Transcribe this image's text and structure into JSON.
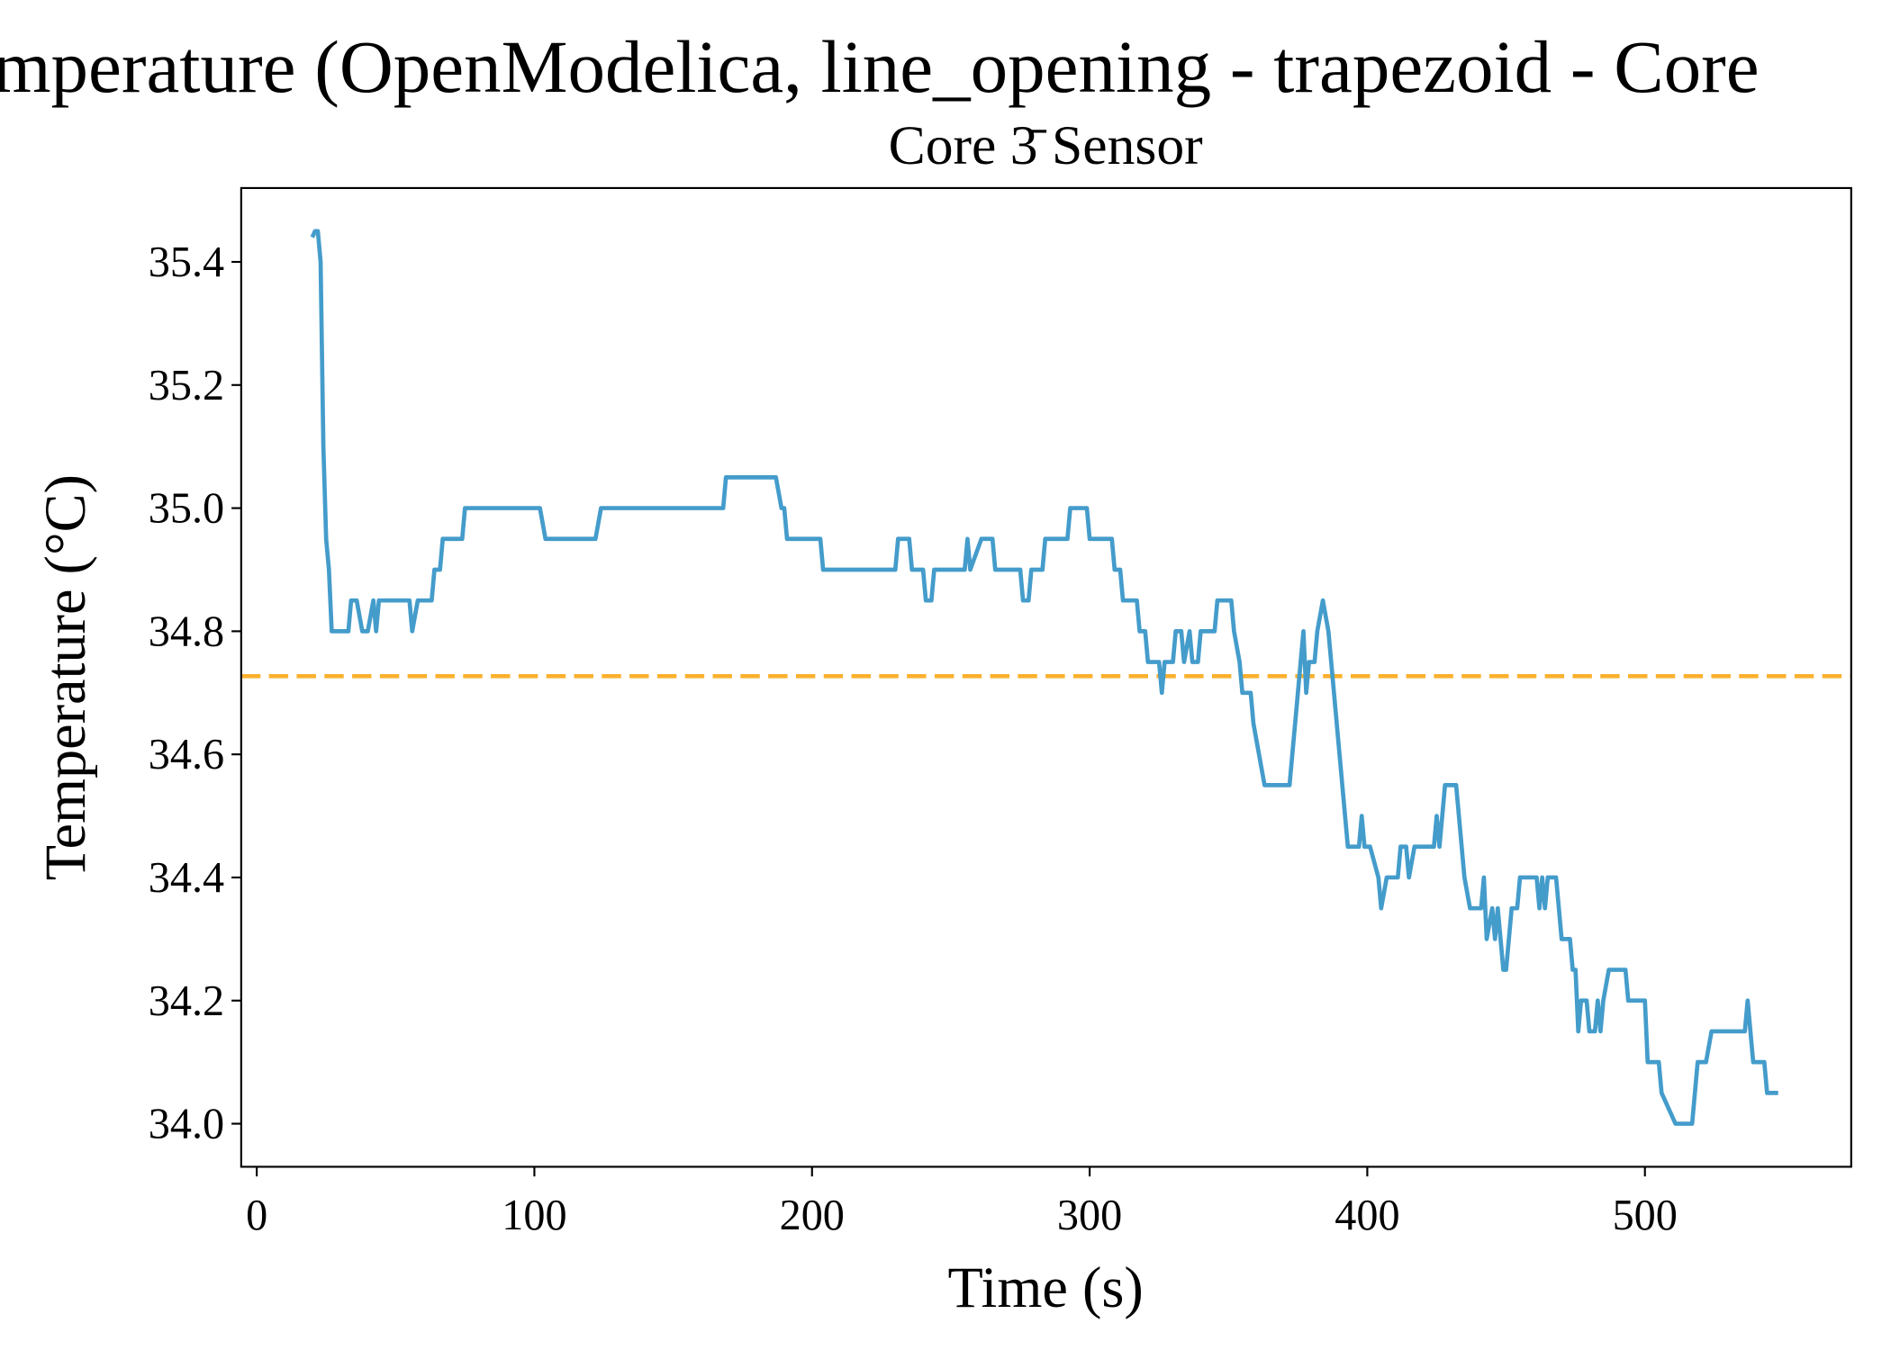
{
  "chart_data": {
    "type": "line",
    "title": "mperature (OpenModelica, line_opening - trapezoid - Core",
    "subtitle": "Core 3̄ Sensor",
    "x_label": "Time (s)",
    "y_label": "Temperature (°C)",
    "xlim": [
      -5.6,
      574.3
    ],
    "ylim": [
      33.93,
      35.52
    ],
    "xticks": [
      0,
      100,
      200,
      300,
      400,
      500
    ],
    "yticks": [
      {
        "value": 34,
        "label": "34.0"
      },
      34.2,
      34.4,
      34.6,
      34.8,
      {
        "value": 35,
        "label": "35.0"
      },
      35.2,
      35.4
    ],
    "grid": false,
    "reference_line": {
      "value": 34.727,
      "color": "#fbb12e"
    },
    "series": [
      {
        "color": "#449ccb",
        "x": [
          20,
          21,
          22,
          23,
          24,
          25,
          26,
          27,
          33,
          34,
          36,
          38,
          40,
          42,
          43,
          44,
          55,
          56,
          58,
          63,
          64,
          66,
          67,
          74,
          75,
          102,
          104,
          122,
          124,
          168,
          169,
          187,
          189,
          190,
          191,
          203,
          204,
          230,
          231,
          235,
          236,
          240,
          241,
          243,
          244,
          255,
          256,
          257,
          261,
          265,
          266,
          275,
          276,
          278,
          279,
          283,
          284,
          292,
          293,
          299,
          300,
          308,
          309,
          311,
          312,
          317,
          318,
          320,
          321,
          325,
          326,
          327,
          330,
          331,
          333,
          334,
          336,
          337,
          339,
          340,
          345,
          346,
          351,
          352,
          354,
          355,
          358,
          359,
          361,
          363,
          372,
          375,
          377,
          378,
          379,
          381,
          382,
          384,
          386,
          390,
          392,
          393,
          397,
          398,
          399,
          401,
          404,
          405,
          407,
          411,
          412,
          414,
          415,
          417,
          424,
          425,
          426,
          428,
          432,
          435,
          437,
          441,
          442,
          443,
          445,
          446,
          447,
          449,
          450,
          452,
          454,
          455,
          461,
          462,
          463,
          464,
          465,
          468,
          470,
          473,
          474,
          475,
          476,
          477,
          479,
          480,
          482,
          483,
          484,
          485,
          487,
          493,
          494,
          500,
          501,
          505,
          506,
          511,
          517,
          518,
          519,
          522,
          524,
          536,
          537,
          538,
          539,
          543,
          544,
          548
        ],
        "values": [
          35.44,
          35.45,
          35.45,
          35.4,
          35.1,
          34.95,
          34.9,
          34.8,
          34.8,
          34.85,
          34.85,
          34.8,
          34.8,
          34.85,
          34.8,
          34.85,
          34.85,
          34.8,
          34.85,
          34.85,
          34.9,
          34.9,
          34.95,
          34.95,
          35.0,
          35.0,
          34.95,
          34.95,
          35.0,
          35.0,
          35.05,
          35.05,
          35.0,
          35.0,
          34.95,
          34.95,
          34.9,
          34.9,
          34.95,
          34.95,
          34.9,
          34.9,
          34.85,
          34.85,
          34.9,
          34.9,
          34.95,
          34.9,
          34.95,
          34.95,
          34.9,
          34.9,
          34.85,
          34.85,
          34.9,
          34.9,
          34.95,
          34.95,
          35.0,
          35.0,
          34.95,
          34.95,
          34.9,
          34.9,
          34.85,
          34.85,
          34.8,
          34.8,
          34.75,
          34.75,
          34.7,
          34.75,
          34.75,
          34.8,
          34.8,
          34.75,
          34.8,
          34.75,
          34.75,
          34.8,
          34.8,
          34.85,
          34.85,
          34.8,
          34.75,
          34.7,
          34.7,
          34.65,
          34.6,
          34.55,
          34.55,
          34.7,
          34.8,
          34.7,
          34.75,
          34.75,
          34.8,
          34.85,
          34.8,
          34.6,
          34.5,
          34.45,
          34.45,
          34.5,
          34.45,
          34.45,
          34.4,
          34.35,
          34.4,
          34.4,
          34.45,
          34.45,
          34.4,
          34.45,
          34.45,
          34.5,
          34.45,
          34.55,
          34.55,
          34.4,
          34.35,
          34.35,
          34.4,
          34.3,
          34.35,
          34.3,
          34.35,
          34.25,
          34.25,
          34.35,
          34.35,
          34.4,
          34.4,
          34.35,
          34.4,
          34.35,
          34.4,
          34.4,
          34.3,
          34.3,
          34.25,
          34.25,
          34.15,
          34.2,
          34.2,
          34.15,
          34.15,
          34.2,
          34.15,
          34.2,
          34.25,
          34.25,
          34.2,
          34.2,
          34.1,
          34.1,
          34.05,
          34.0,
          34.0,
          34.05,
          34.1,
          34.1,
          34.15,
          34.15,
          34.2,
          34.15,
          34.1,
          34.1,
          34.05,
          34.05
        ]
      }
    ]
  }
}
